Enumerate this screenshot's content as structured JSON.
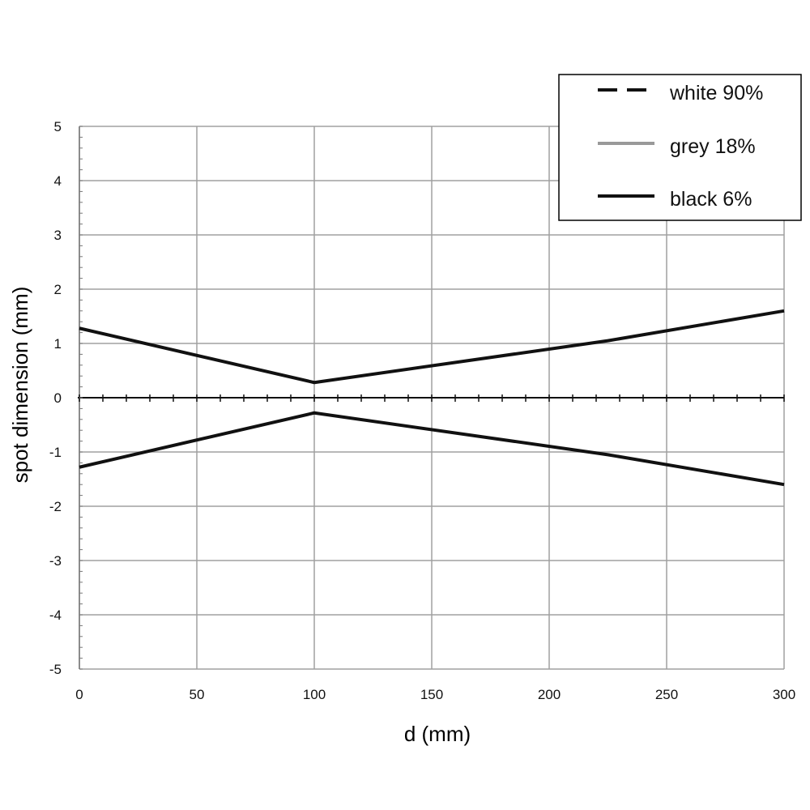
{
  "chart_data": {
    "type": "line",
    "title": "",
    "xlabel": "d (mm)",
    "ylabel": "spot dimension (mm)",
    "xlim": [
      0,
      300
    ],
    "ylim": [
      -5,
      5
    ],
    "x_ticks": [
      0,
      50,
      100,
      150,
      200,
      250,
      300
    ],
    "y_ticks": [
      5,
      4,
      3,
      2,
      1,
      0,
      -1,
      -2,
      -3,
      -4,
      -5
    ],
    "grid": true,
    "legend_position": "top-right",
    "legend": [
      {
        "label": "white 90%",
        "style": "dashed",
        "color": "#111111"
      },
      {
        "label": "grey 18%",
        "style": "solid",
        "color": "#999999"
      },
      {
        "label": "black 6%",
        "style": "solid",
        "color": "#111111"
      }
    ],
    "series": [
      {
        "name": "black 6%",
        "color": "#111111",
        "x": [
          0,
          100,
          225,
          300
        ],
        "y": [
          1.28,
          0.28,
          1.05,
          1.6
        ]
      },
      {
        "name": "black 6%",
        "color": "#111111",
        "x": [
          0,
          100,
          225,
          300
        ],
        "y": [
          -1.28,
          -0.28,
          -1.05,
          -1.6
        ]
      }
    ]
  }
}
